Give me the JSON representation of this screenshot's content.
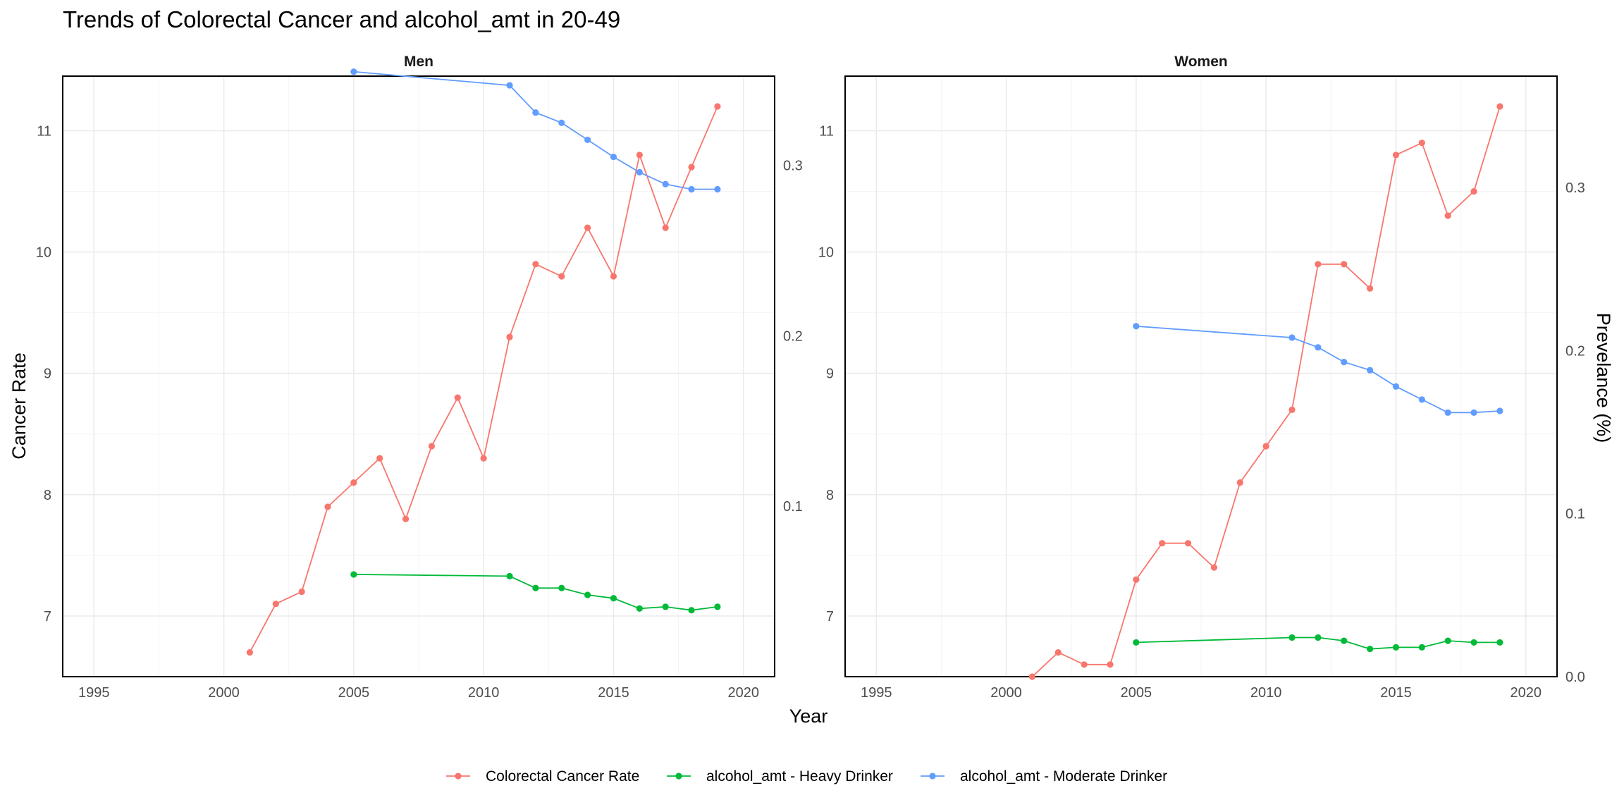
{
  "chart_data": {
    "type": "line",
    "title": "Trends of Colorectal Cancer and alcohol_amt in 20-49",
    "xlabel": "Year",
    "ylabel": "Cancer Rate",
    "ylabel_right": "Prevelance (%)",
    "legend_position": "bottom",
    "x_ticks": [
      1995,
      2000,
      2005,
      2010,
      2015,
      2020
    ],
    "colors": {
      "Colorectal Cancer Rate": "#F8766D",
      "alcohol_amt - Heavy Drinker": "#00BA38",
      "alcohol_amt - Moderate Drinker": "#619CFF"
    },
    "legend": [
      {
        "label": "Colorectal Cancer Rate",
        "color": "#F8766D"
      },
      {
        "label": "alcohol_amt - Heavy Drinker",
        "color": "#00BA38"
      },
      {
        "label": "alcohol_amt - Moderate Drinker",
        "color": "#619CFF"
      }
    ],
    "panels": [
      {
        "name": "Men",
        "xlim": [
          1993.8,
          2021.2
        ],
        "ylim": [
          6.5,
          11.45
        ],
        "y_ticks": [
          7,
          8,
          9,
          10,
          11
        ],
        "y2lim": [
          0.0,
          0.3524
        ],
        "y2_ticks": [
          0.1,
          0.2,
          0.3
        ],
        "series": [
          {
            "name": "Colorectal Cancer Rate",
            "axis": "left",
            "x": [
              2001,
              2002,
              2003,
              2004,
              2005,
              2006,
              2007,
              2008,
              2009,
              2010,
              2011,
              2012,
              2013,
              2014,
              2015,
              2016,
              2017,
              2018,
              2019
            ],
            "y": [
              6.7,
              7.1,
              7.2,
              7.9,
              8.1,
              8.3,
              7.8,
              8.4,
              8.8,
              8.3,
              9.3,
              9.9,
              9.8,
              10.2,
              9.8,
              10.8,
              10.2,
              10.7,
              11.2
            ]
          },
          {
            "name": "alcohol_amt - Heavy Drinker",
            "axis": "right",
            "x": [
              2005,
              2011,
              2012,
              2013,
              2014,
              2015,
              2016,
              2017,
              2018,
              2019
            ],
            "y": [
              0.06,
              0.059,
              0.052,
              0.052,
              0.048,
              0.046,
              0.04,
              0.041,
              0.039,
              0.041
            ]
          },
          {
            "name": "alcohol_amt - Moderate Drinker",
            "axis": "right",
            "x": [
              2005,
              2011,
              2012,
              2013,
              2014,
              2015,
              2016,
              2017,
              2018,
              2019
            ],
            "y": [
              0.355,
              0.347,
              0.331,
              0.325,
              0.315,
              0.305,
              0.296,
              0.289,
              0.286,
              0.286
            ]
          }
        ]
      },
      {
        "name": "Women",
        "xlim": [
          1993.8,
          2021.2
        ],
        "ylim": [
          6.5,
          11.45
        ],
        "y_ticks": [
          7,
          8,
          9,
          10,
          11
        ],
        "y2lim": [
          0.0,
          0.3684
        ],
        "y2_ticks": [
          0.0,
          0.1,
          0.2,
          0.3
        ],
        "series": [
          {
            "name": "Colorectal Cancer Rate",
            "axis": "left",
            "x": [
              2001,
              2002,
              2003,
              2004,
              2005,
              2006,
              2007,
              2008,
              2009,
              2010,
              2011,
              2012,
              2013,
              2014,
              2015,
              2016,
              2017,
              2018,
              2019
            ],
            "y": [
              6.5,
              6.7,
              6.6,
              6.6,
              7.3,
              7.6,
              7.6,
              7.4,
              8.1,
              8.4,
              8.7,
              9.9,
              9.9,
              9.7,
              10.8,
              10.9,
              10.3,
              10.5,
              11.2
            ]
          },
          {
            "name": "alcohol_amt - Heavy Drinker",
            "axis": "right",
            "x": [
              2005,
              2011,
              2012,
              2013,
              2014,
              2015,
              2016,
              2017,
              2018,
              2019
            ],
            "y": [
              0.021,
              0.024,
              0.024,
              0.022,
              0.017,
              0.018,
              0.018,
              0.022,
              0.021,
              0.021
            ]
          },
          {
            "name": "alcohol_amt - Moderate Drinker",
            "axis": "right",
            "x": [
              2005,
              2011,
              2012,
              2013,
              2014,
              2015,
              2016,
              2017,
              2018,
              2019
            ],
            "y": [
              0.215,
              0.208,
              0.202,
              0.193,
              0.188,
              0.178,
              0.17,
              0.162,
              0.162,
              0.163
            ]
          }
        ]
      }
    ]
  }
}
